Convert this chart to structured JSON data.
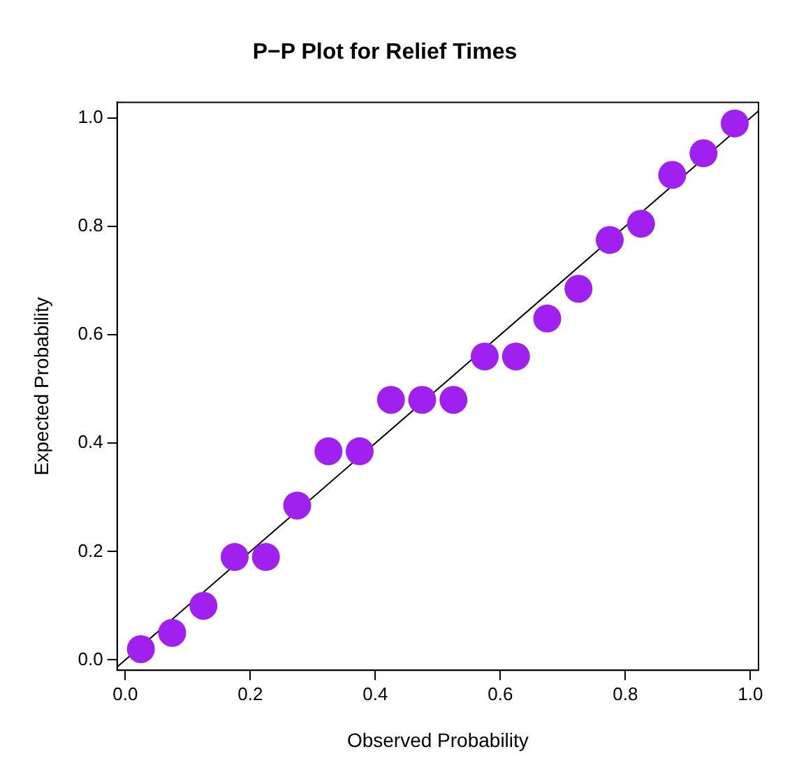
{
  "chart_data": {
    "type": "scatter",
    "title": "P−P Plot for Relief Times",
    "xlabel": "Observed Probability",
    "ylabel": "Expected Probability",
    "series": [
      {
        "color": "#a020f0",
        "marker": "circle",
        "x": [
          0.025,
          0.075,
          0.125,
          0.175,
          0.225,
          0.275,
          0.325,
          0.375,
          0.425,
          0.475,
          0.525,
          0.575,
          0.625,
          0.675,
          0.725,
          0.775,
          0.825,
          0.875,
          0.925,
          0.975
        ],
        "values": [
          0.02,
          0.05,
          0.1,
          0.19,
          0.19,
          0.285,
          0.385,
          0.385,
          0.48,
          0.48,
          0.48,
          0.56,
          0.56,
          0.63,
          0.685,
          0.775,
          0.805,
          0.895,
          0.935,
          0.99
        ]
      },
      {
        "type": "line",
        "color": "#000000",
        "marker": "none",
        "x": [
          -0.013,
          1.013
        ],
        "values": [
          -0.013,
          1.013
        ]
      }
    ],
    "xlim": [
      -0.013,
      1.013
    ],
    "ylim": [
      -0.019,
      1.029
    ],
    "xticks": [
      {
        "value": 0,
        "label": "0.0"
      },
      0.2,
      0.4,
      0.6,
      0.8,
      {
        "value": 1,
        "label": "1.0"
      }
    ],
    "yticks": [
      {
        "value": 0,
        "label": "0.0"
      },
      0.2,
      0.4,
      0.6,
      0.8,
      {
        "value": 1,
        "label": "1.0"
      }
    ]
  }
}
